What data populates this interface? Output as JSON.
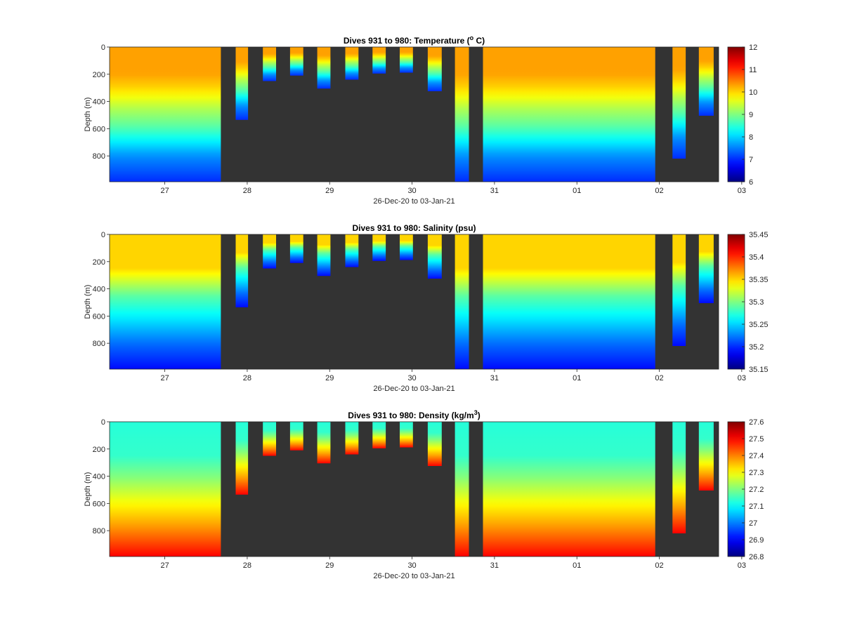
{
  "figure": {
    "xlabel": "26-Dec-20 to 03-Jan-21",
    "ylabel": "Depth (m)"
  },
  "chart_data": [
    {
      "type": "heatmap",
      "title": "Dives 931 to 980: Temperature (°C)",
      "title_parts": {
        "before": "Dives 931 to 980: Temperature (",
        "sup": "o",
        "after": " C)"
      },
      "xlabel": "26-Dec-20 to 03-Jan-21",
      "ylabel": "Depth (m)",
      "x_ticks": [
        "27",
        "28",
        "29",
        "30",
        "31",
        "01",
        "02",
        "03"
      ],
      "y_ticks": [
        0,
        200,
        400,
        600,
        800
      ],
      "ylim": [
        0,
        990
      ],
      "y_reversed": true,
      "colormap": "jet",
      "clim": [
        6,
        12
      ],
      "colorbar_ticks": [
        "6",
        "7",
        "8",
        "9",
        "10",
        "11",
        "12"
      ],
      "profile_value_points": [
        [
          0,
          10.3
        ],
        [
          200,
          10.3
        ],
        [
          300,
          10.0
        ],
        [
          450,
          9.3
        ],
        [
          600,
          8.7
        ],
        [
          800,
          7.6
        ],
        [
          990,
          7.0
        ]
      ],
      "missing_color": "#333333"
    },
    {
      "type": "heatmap",
      "title": "Dives 931 to 980: Salinity (psu)",
      "title_parts": {
        "before": "Dives 931 to 980: Salinity (psu)",
        "sup": "",
        "after": ""
      },
      "xlabel": "26-Dec-20 to 03-Jan-21",
      "ylabel": "Depth (m)",
      "x_ticks": [
        "27",
        "28",
        "29",
        "30",
        "31",
        "01",
        "02",
        "03"
      ],
      "y_ticks": [
        0,
        200,
        400,
        600,
        800
      ],
      "ylim": [
        0,
        990
      ],
      "y_reversed": true,
      "colormap": "jet",
      "clim": [
        35.15,
        35.45
      ],
      "colorbar_ticks": [
        "35.15",
        "35.2",
        "35.25",
        "35.3",
        "35.35",
        "35.4",
        "35.45"
      ],
      "profile_value_points": [
        [
          0,
          35.35
        ],
        [
          250,
          35.35
        ],
        [
          350,
          35.32
        ],
        [
          450,
          35.29
        ],
        [
          600,
          35.26
        ],
        [
          800,
          35.22
        ],
        [
          990,
          35.19
        ]
      ],
      "missing_color": "#333333"
    },
    {
      "type": "heatmap",
      "title": "Dives 931 to 980: Density (kg/m³)",
      "title_parts": {
        "before": "Dives 931 to 980: Density (kg/m",
        "sup": "3",
        "after": ")"
      },
      "xlabel": "26-Dec-20 to 03-Jan-21",
      "ylabel": "Depth (m)",
      "x_ticks": [
        "27",
        "28",
        "29",
        "30",
        "31",
        "01",
        "02",
        "03"
      ],
      "y_ticks": [
        0,
        200,
        400,
        600,
        800
      ],
      "ylim": [
        0,
        990
      ],
      "y_reversed": true,
      "colormap": "jet",
      "clim": [
        26.8,
        27.6
      ],
      "colorbar_ticks": [
        "26.8",
        "26.9",
        "27",
        "27.1",
        "27.2",
        "27.3",
        "27.4",
        "27.5",
        "27.6"
      ],
      "profile_value_points": [
        [
          0,
          27.13
        ],
        [
          250,
          27.14
        ],
        [
          400,
          27.2
        ],
        [
          600,
          27.3
        ],
        [
          750,
          27.37
        ],
        [
          900,
          27.45
        ],
        [
          990,
          27.5
        ]
      ],
      "missing_color": "#333333"
    }
  ],
  "sections": [
    {
      "start_day": 26.33,
      "end_day": 27.68,
      "max_depth": 990
    },
    {
      "start_day": 27.86,
      "end_day": 28.01,
      "max_depth": 535
    },
    {
      "start_day": 28.19,
      "end_day": 28.35,
      "max_depth": 250
    },
    {
      "start_day": 28.52,
      "end_day": 28.68,
      "max_depth": 210
    },
    {
      "start_day": 28.85,
      "end_day": 29.01,
      "max_depth": 305
    },
    {
      "start_day": 29.19,
      "end_day": 29.35,
      "max_depth": 240
    },
    {
      "start_day": 29.52,
      "end_day": 29.68,
      "max_depth": 195
    },
    {
      "start_day": 29.85,
      "end_day": 30.01,
      "max_depth": 188
    },
    {
      "start_day": 30.19,
      "end_day": 30.36,
      "max_depth": 325
    },
    {
      "start_day": 30.52,
      "end_day": 30.69,
      "max_depth": 990
    },
    {
      "start_day": 30.86,
      "end_day": 32.95,
      "max_depth": 990
    },
    {
      "start_day": 33.16,
      "end_day": 33.32,
      "max_depth": 820
    },
    {
      "start_day": 33.48,
      "end_day": 33.66,
      "max_depth": 505
    }
  ]
}
